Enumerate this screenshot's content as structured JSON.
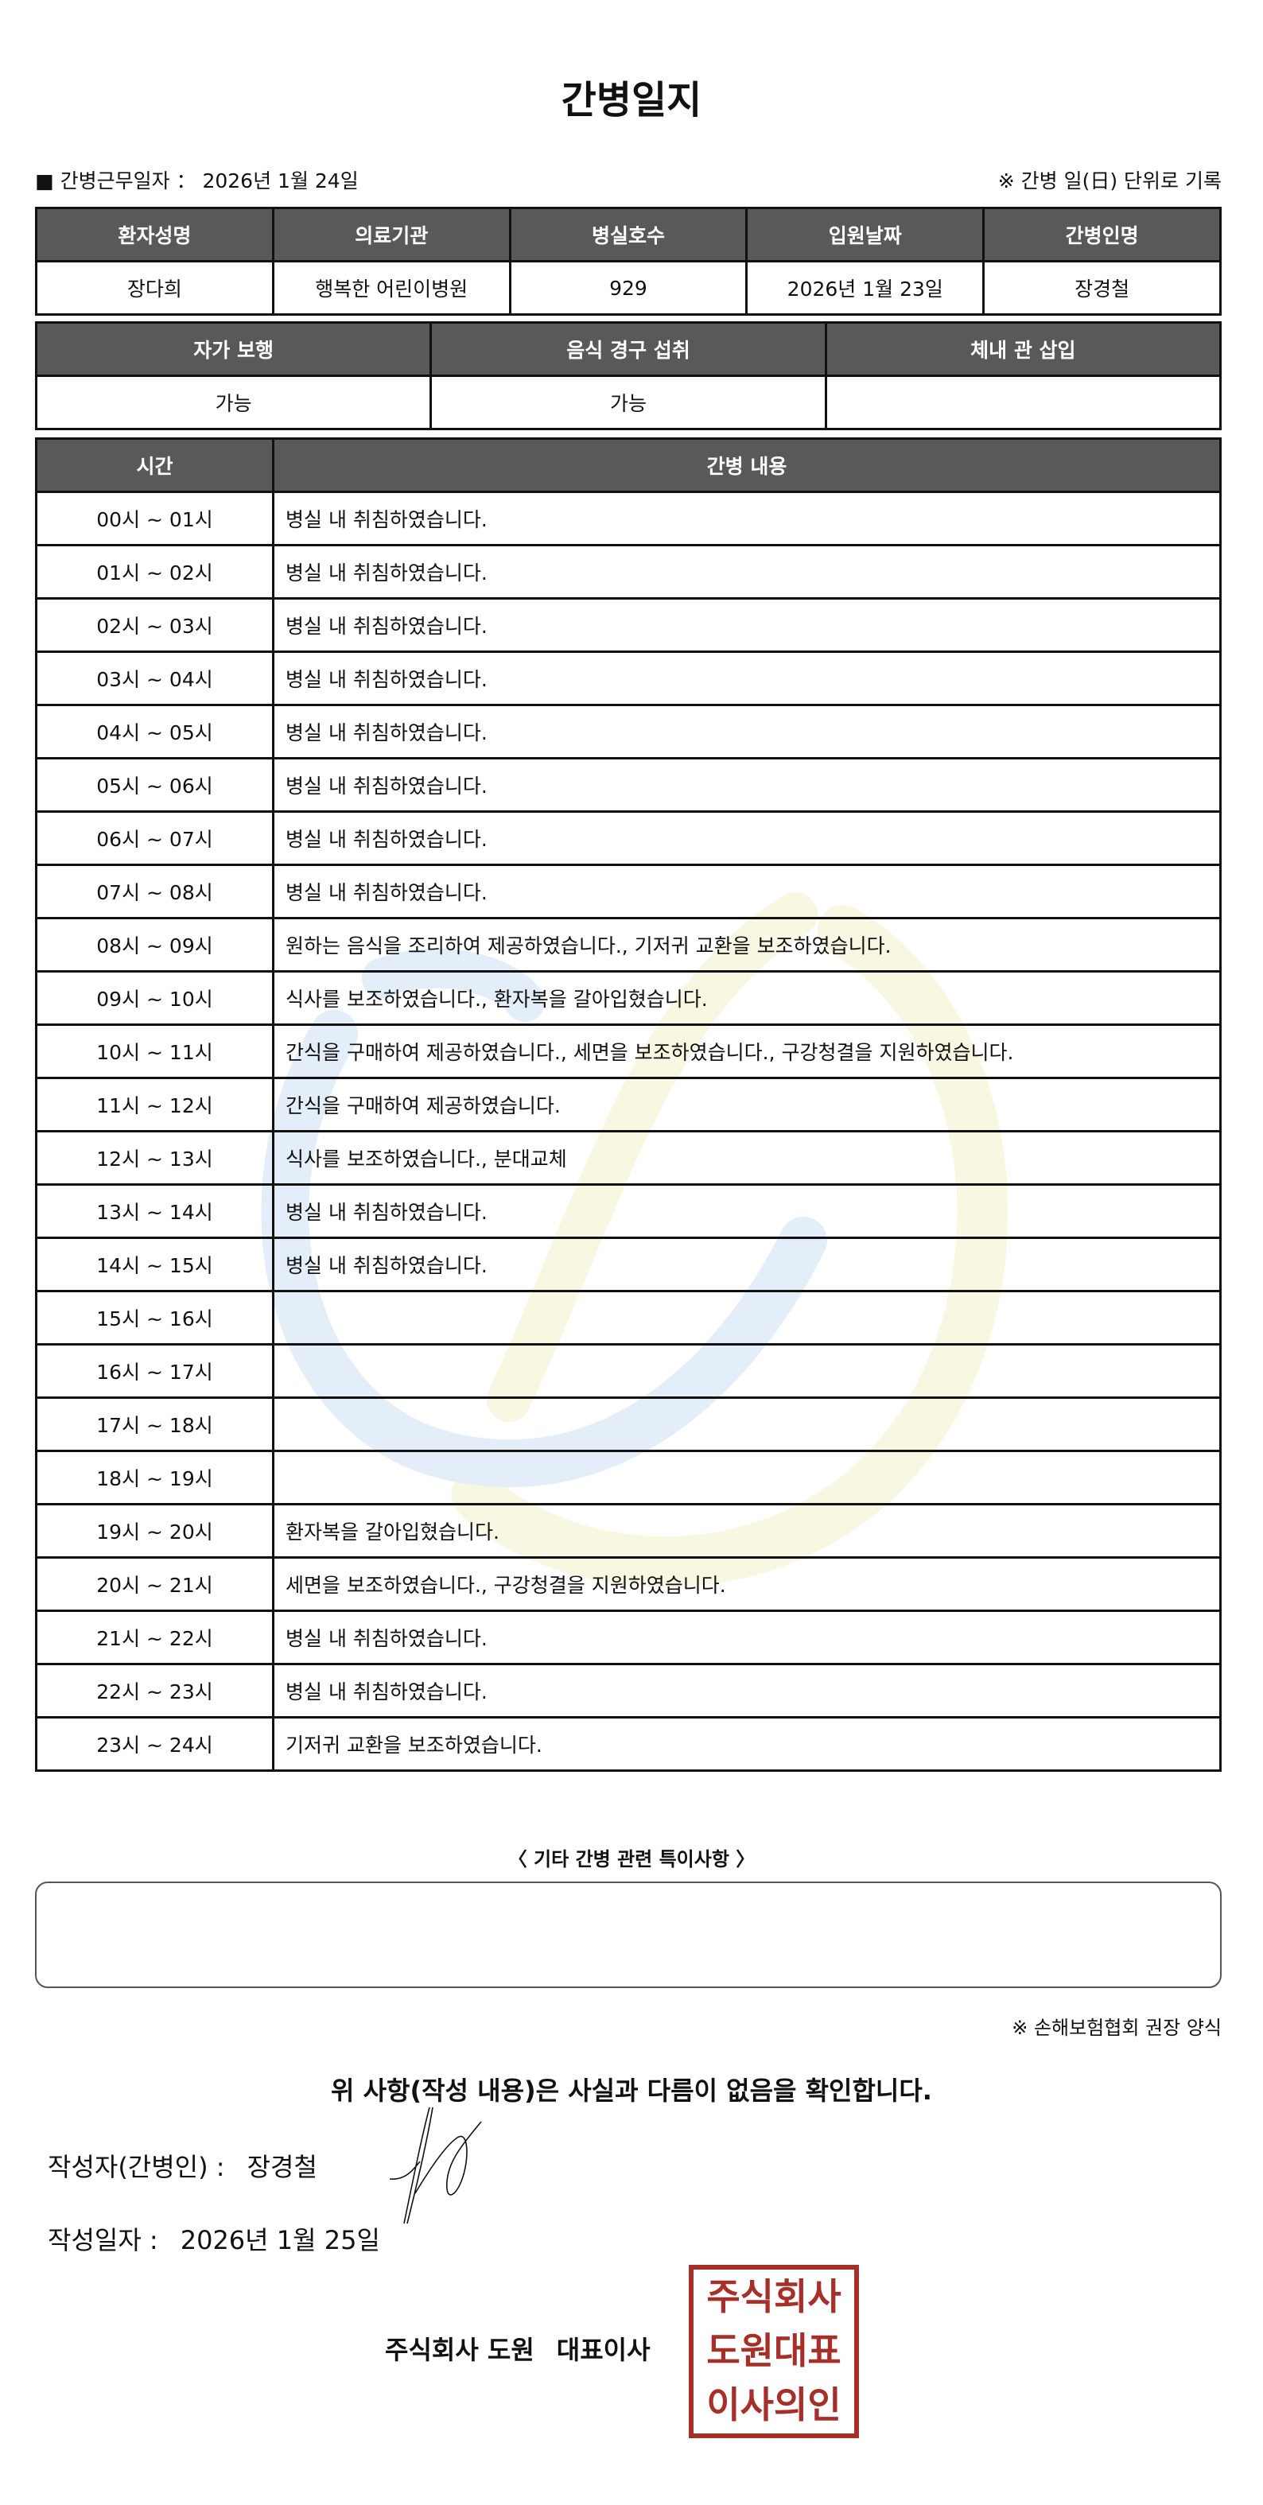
{
  "title": "간병일지",
  "work_date": {
    "label": "■ 간병근무일자 ：",
    "value": "2026년 1월 24일"
  },
  "unit_note": "※ 간병 일(日) 단위로 기록",
  "info_table": {
    "headers": [
      "환자성명",
      "의료기관",
      "병실호수",
      "입원날짜",
      "간병인명"
    ],
    "values": [
      "장다희",
      "행복한 어린이병원",
      "929",
      "2026년 1월 23일",
      "장경철"
    ]
  },
  "status_table": {
    "headers": [
      "자가 보행",
      "음식 경구 섭취",
      "체내 관 삽입"
    ],
    "values": [
      "가능",
      "가능",
      ""
    ]
  },
  "log_table": {
    "headers": [
      "시간",
      "간병 내용"
    ],
    "rows": [
      {
        "time": "00시 ~ 01시",
        "content": "병실 내 취침하였습니다."
      },
      {
        "time": "01시 ~ 02시",
        "content": "병실 내 취침하였습니다."
      },
      {
        "time": "02시 ~ 03시",
        "content": "병실 내 취침하였습니다."
      },
      {
        "time": "03시 ~ 04시",
        "content": "병실 내 취침하였습니다."
      },
      {
        "time": "04시 ~ 05시",
        "content": "병실 내 취침하였습니다."
      },
      {
        "time": "05시 ~ 06시",
        "content": "병실 내 취침하였습니다."
      },
      {
        "time": "06시 ~ 07시",
        "content": "병실 내 취침하였습니다."
      },
      {
        "time": "07시 ~ 08시",
        "content": "병실 내 취침하였습니다."
      },
      {
        "time": "08시 ~ 09시",
        "content": "원하는 음식을 조리하여 제공하였습니다., 기저귀 교환을 보조하였습니다."
      },
      {
        "time": "09시 ~ 10시",
        "content": "식사를 보조하였습니다., 환자복을 갈아입혔습니다."
      },
      {
        "time": "10시 ~ 11시",
        "content": "간식을 구매하여 제공하였습니다., 세면을 보조하였습니다., 구강청결을 지원하였습니다."
      },
      {
        "time": "11시 ~ 12시",
        "content": "간식을 구매하여 제공하였습니다."
      },
      {
        "time": "12시 ~ 13시",
        "content": "식사를 보조하였습니다., 분대교체"
      },
      {
        "time": "13시 ~ 14시",
        "content": "병실 내 취침하였습니다."
      },
      {
        "time": "14시 ~ 15시",
        "content": "병실 내 취침하였습니다."
      },
      {
        "time": "15시 ~ 16시",
        "content": ""
      },
      {
        "time": "16시 ~ 17시",
        "content": ""
      },
      {
        "time": "17시 ~ 18시",
        "content": ""
      },
      {
        "time": "18시 ~ 19시",
        "content": ""
      },
      {
        "time": "19시 ~ 20시",
        "content": "환자복을 갈아입혔습니다."
      },
      {
        "time": "20시 ~ 21시",
        "content": "세면을 보조하였습니다., 구강청결을 지원하였습니다."
      },
      {
        "time": "21시 ~ 22시",
        "content": "병실 내 취침하였습니다."
      },
      {
        "time": "22시 ~ 23시",
        "content": "병실 내 취침하였습니다."
      },
      {
        "time": "23시 ~ 24시",
        "content": "기저귀 교환을 보조하였습니다."
      }
    ]
  },
  "notes": {
    "title": "〈 기타 간병 관련 특이사항 〉",
    "value": ""
  },
  "form_note": "※ 손해보험협회 권장 양식",
  "confirm_text": "위 사항(작성 내용)은 사실과 다름이 없음을 확인합니다.",
  "writer": {
    "label": "작성자(간병인) :",
    "value": "장경철"
  },
  "written_date": {
    "label": "작성일자 :",
    "value": "2026년 1월 25일"
  },
  "company": {
    "name": "주식회사 도원",
    "title": "대표이사"
  },
  "seal": {
    "text": [
      "주식회사",
      "도원대표",
      "이사의인"
    ],
    "color": "#a5302a"
  },
  "colors": {
    "header_bg": "#595959",
    "watermark_blue": "#e3eef8",
    "watermark_yellow": "#f7f7e2"
  }
}
